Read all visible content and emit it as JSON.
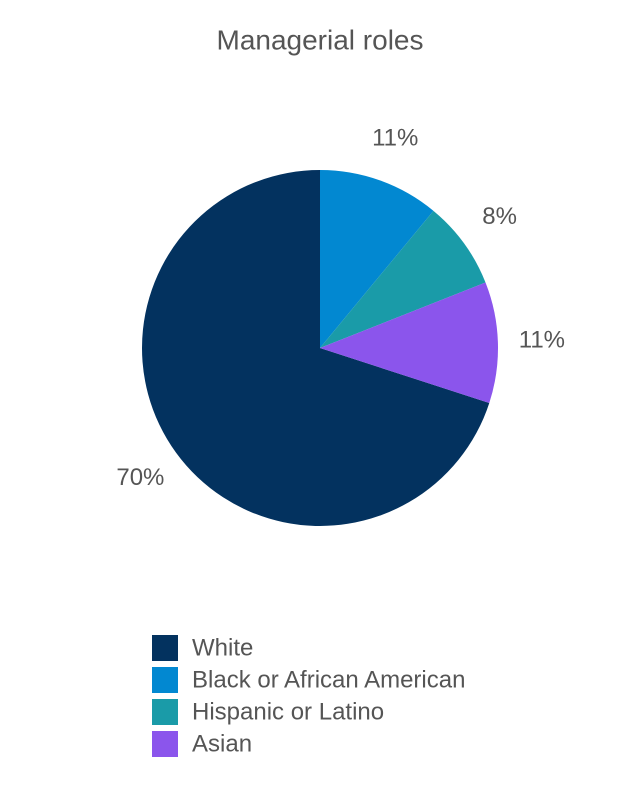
{
  "chart_data": {
    "type": "pie",
    "title": "Managerial roles",
    "categories": [
      "White",
      "Black or African American",
      "Hispanic or Latino",
      "Asian"
    ],
    "values": [
      70,
      11,
      8,
      11
    ],
    "value_labels": [
      "70%",
      "11%",
      "8%",
      "11%"
    ],
    "colors": [
      "#03325f",
      "#0288d1",
      "#1a9ba8",
      "#8b55ec"
    ]
  }
}
